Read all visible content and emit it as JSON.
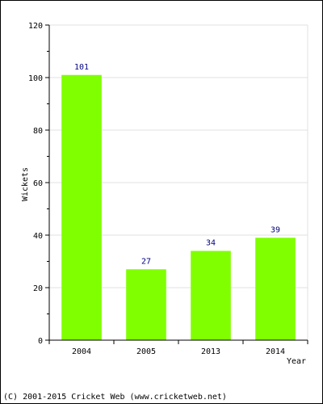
{
  "chart_data": {
    "type": "bar",
    "categories": [
      "2004",
      "2005",
      "2013",
      "2014"
    ],
    "values": [
      101,
      27,
      34,
      39
    ],
    "data_labels": [
      "101",
      "27",
      "34",
      "39"
    ],
    "xlabel": "Year",
    "ylabel": "Wickets",
    "ylim": [
      0,
      120
    ],
    "yticks": [
      0,
      20,
      40,
      60,
      80,
      100,
      120
    ],
    "grid": true,
    "legend": "none",
    "bar_color": "#80ff00",
    "label_color": "#000080"
  },
  "footer": {
    "copyright": "(C) 2001-2015 Cricket Web (www.cricketweb.net)"
  }
}
